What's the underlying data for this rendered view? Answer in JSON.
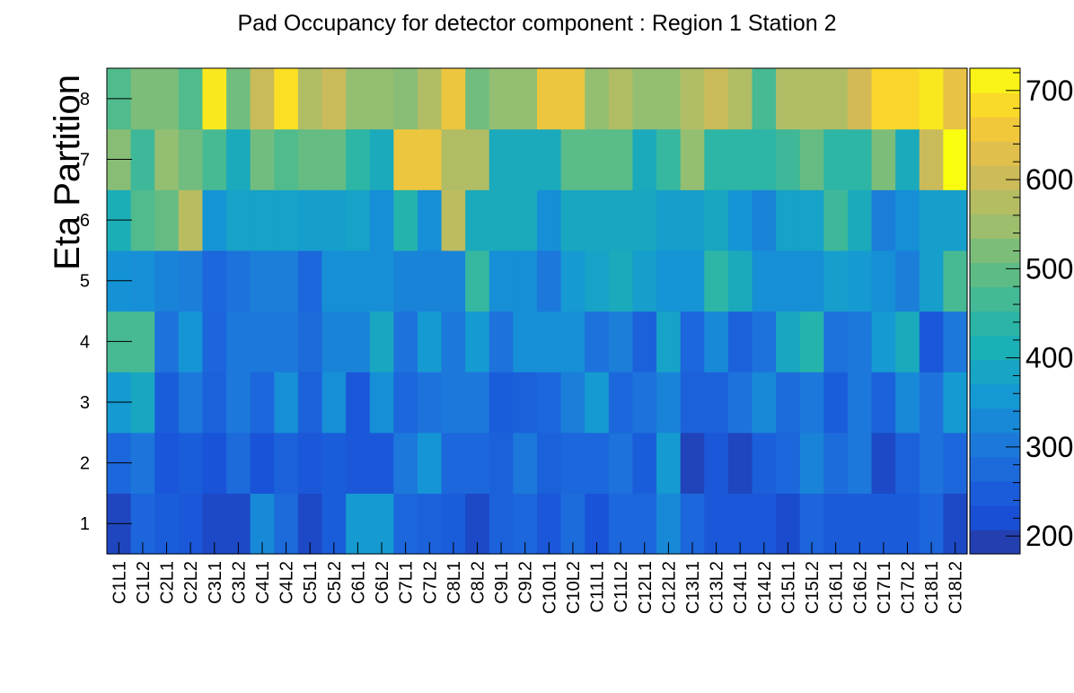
{
  "chart_data": {
    "type": "heatmap",
    "title": "Pad Occupancy for detector component : Region 1 Station 2",
    "xlabel": "",
    "ylabel": "Eta Partition",
    "x_categories": [
      "C1L1",
      "C1L2",
      "C2L1",
      "C2L2",
      "C3L1",
      "C3L2",
      "C4L1",
      "C4L2",
      "C5L1",
      "C5L2",
      "C6L1",
      "C6L2",
      "C7L1",
      "C7L2",
      "C8L1",
      "C8L2",
      "C9L1",
      "C9L2",
      "C10L1",
      "C10L2",
      "C11L1",
      "C11L2",
      "C12L1",
      "C12L2",
      "C13L1",
      "C13L2",
      "C14L1",
      "C14L2",
      "C15L1",
      "C15L2",
      "C16L1",
      "C16L2",
      "C17L1",
      "C17L2",
      "C18L1",
      "C18L2"
    ],
    "y_categories": [
      "1",
      "2",
      "3",
      "4",
      "5",
      "6",
      "7",
      "8"
    ],
    "zlim": [
      180,
      725
    ],
    "colorbar_ticks": [
      "200",
      "300",
      "400",
      "500",
      "600",
      "700"
    ],
    "colorbar_tick_values": [
      200,
      300,
      400,
      500,
      600,
      700
    ],
    "values": [
      [
        205,
        265,
        250,
        240,
        210,
        210,
        330,
        275,
        210,
        250,
        360,
        360,
        270,
        260,
        250,
        210,
        260,
        270,
        240,
        280,
        230,
        270,
        270,
        330,
        270,
        240,
        240,
        240,
        215,
        265,
        245,
        245,
        245,
        245,
        265,
        210
      ],
      [
        270,
        295,
        235,
        250,
        230,
        275,
        230,
        260,
        240,
        250,
        240,
        240,
        300,
        350,
        270,
        270,
        260,
        300,
        260,
        270,
        270,
        290,
        250,
        360,
        200,
        240,
        205,
        255,
        270,
        320,
        280,
        300,
        210,
        260,
        290,
        270
      ],
      [
        360,
        390,
        250,
        300,
        260,
        300,
        270,
        340,
        260,
        340,
        240,
        340,
        270,
        290,
        300,
        300,
        250,
        260,
        270,
        310,
        360,
        270,
        290,
        320,
        260,
        260,
        290,
        330,
        280,
        300,
        250,
        300,
        260,
        330,
        290,
        360
      ],
      [
        470,
        470,
        290,
        350,
        265,
        300,
        300,
        300,
        275,
        320,
        320,
        390,
        290,
        360,
        300,
        360,
        290,
        340,
        340,
        340,
        290,
        310,
        260,
        380,
        270,
        330,
        260,
        290,
        390,
        430,
        290,
        300,
        360,
        400,
        240,
        300
      ],
      [
        345,
        340,
        320,
        310,
        270,
        290,
        310,
        310,
        270,
        340,
        340,
        340,
        320,
        320,
        320,
        450,
        340,
        340,
        300,
        360,
        380,
        400,
        370,
        350,
        350,
        440,
        400,
        340,
        340,
        340,
        370,
        360,
        340,
        310,
        370,
        470
      ],
      [
        410,
        480,
        500,
        580,
        350,
        380,
        380,
        380,
        370,
        370,
        380,
        340,
        430,
        340,
        585,
        400,
        400,
        400,
        340,
        390,
        390,
        390,
        390,
        370,
        370,
        390,
        350,
        320,
        380,
        380,
        460,
        400,
        310,
        340,
        370,
        370
      ],
      [
        530,
        460,
        540,
        510,
        470,
        400,
        510,
        480,
        500,
        500,
        440,
        400,
        650,
        650,
        570,
        570,
        400,
        400,
        400,
        490,
        490,
        490,
        400,
        450,
        540,
        440,
        440,
        440,
        460,
        500,
        440,
        440,
        520,
        400,
        600,
        725
      ],
      [
        480,
        520,
        520,
        480,
        700,
        510,
        600,
        690,
        570,
        600,
        540,
        540,
        530,
        570,
        650,
        510,
        540,
        540,
        650,
        650,
        540,
        570,
        540,
        540,
        570,
        600,
        570,
        470,
        570,
        570,
        570,
        610,
        680,
        680,
        700,
        640
      ]
    ]
  }
}
